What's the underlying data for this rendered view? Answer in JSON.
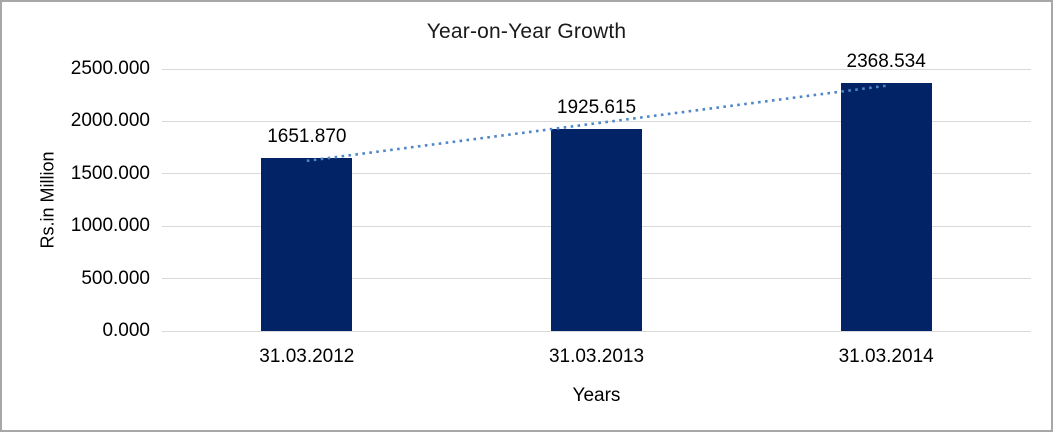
{
  "frame": {
    "border_color": "#a7a7a7",
    "background_color": "#ffffff"
  },
  "chart_data": {
    "type": "bar",
    "title": "Year-on-Year Growth",
    "xlabel": "Years",
    "ylabel": "Rs.in Million",
    "categories": [
      "31.03.2012",
      "31.03.2013",
      "31.03.2014"
    ],
    "values": [
      1651.87,
      1925.615,
      2368.534
    ],
    "data_labels": [
      "1651.870",
      "1925.615",
      "2368.534"
    ],
    "yticks": [
      {
        "label": "0.000",
        "value": 0
      },
      {
        "label": "500.000",
        "value": 500
      },
      {
        "label": "1000.000",
        "value": 1000
      },
      {
        "label": "1500.000",
        "value": 1500
      },
      {
        "label": "2000.000",
        "value": 2000
      },
      {
        "label": "2500.000",
        "value": 2500
      }
    ],
    "ylim": [
      0,
      2500
    ],
    "grid": true,
    "legend": "none",
    "bar_color": "#022366",
    "gridline_color": "#d9d9d9",
    "text_color": "#000000",
    "trendline": {
      "type": "linear",
      "style": "dotted",
      "color": "#4e86c8"
    }
  }
}
